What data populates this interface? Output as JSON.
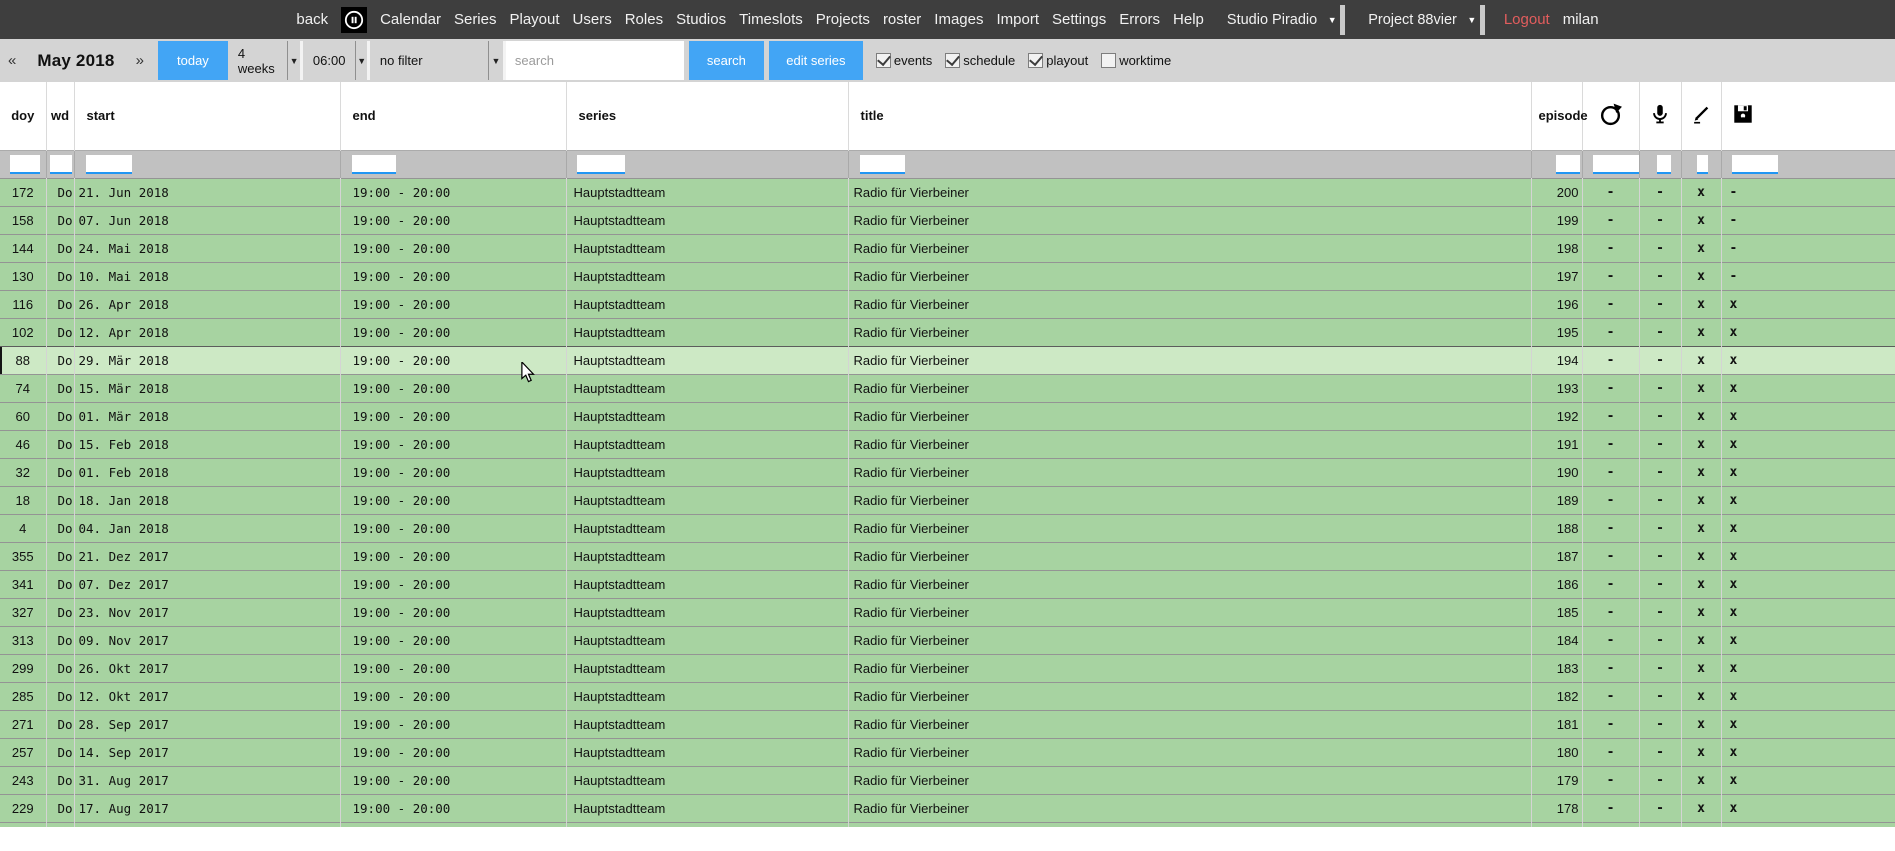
{
  "nav": {
    "back": "back",
    "logo_icon": "pause-circle-logo",
    "items": [
      "Calendar",
      "Series",
      "Playout",
      "Users",
      "Roles",
      "Studios",
      "Timeslots",
      "Projects",
      "roster",
      "Images",
      "Import",
      "Settings",
      "Errors",
      "Help"
    ],
    "studio_select": "Studio Piradio",
    "project_select": "Project 88vier",
    "logout": "Logout",
    "username": "milan"
  },
  "toolbar": {
    "prev": "«",
    "month": "May 2018",
    "next": "»",
    "today_button": "today",
    "range_select": "4 weeks",
    "time_select": "06:00",
    "filter_select": "no filter",
    "search_placeholder": "search",
    "search_button": "search",
    "edit_series_button": "edit series",
    "checkboxes": [
      {
        "label": "events",
        "checked": true
      },
      {
        "label": "schedule",
        "checked": true
      },
      {
        "label": "playout",
        "checked": true
      },
      {
        "label": "worktime",
        "checked": false
      }
    ]
  },
  "table": {
    "headers": {
      "doy": "doy",
      "wd": "wd",
      "start": "start",
      "end": "end",
      "series": "series",
      "title": "title",
      "episode": "episode"
    },
    "icon_columns": [
      "rerun-icon",
      "microphone-icon",
      "pencil-icon",
      "save-icon"
    ],
    "rows": [
      {
        "doy": "172",
        "wd": "Do,",
        "start": "21. Jun 2018",
        "end": "19:00 - 20:00",
        "series": "Hauptstadtteam",
        "title": "Radio für Vierbeiner",
        "episode": "200",
        "rerun": "-",
        "mic": "-",
        "edit": "x",
        "save": "-",
        "highlighted": false
      },
      {
        "doy": "158",
        "wd": "Do,",
        "start": "07. Jun 2018",
        "end": "19:00 - 20:00",
        "series": "Hauptstadtteam",
        "title": "Radio für Vierbeiner",
        "episode": "199",
        "rerun": "-",
        "mic": "-",
        "edit": "x",
        "save": "-",
        "highlighted": false
      },
      {
        "doy": "144",
        "wd": "Do,",
        "start": "24. Mai 2018",
        "end": "19:00 - 20:00",
        "series": "Hauptstadtteam",
        "title": "Radio für Vierbeiner",
        "episode": "198",
        "rerun": "-",
        "mic": "-",
        "edit": "x",
        "save": "-",
        "highlighted": false
      },
      {
        "doy": "130",
        "wd": "Do,",
        "start": "10. Mai 2018",
        "end": "19:00 - 20:00",
        "series": "Hauptstadtteam",
        "title": "Radio für Vierbeiner",
        "episode": "197",
        "rerun": "-",
        "mic": "-",
        "edit": "x",
        "save": "-",
        "highlighted": false
      },
      {
        "doy": "116",
        "wd": "Do,",
        "start": "26. Apr 2018",
        "end": "19:00 - 20:00",
        "series": "Hauptstadtteam",
        "title": "Radio für Vierbeiner",
        "episode": "196",
        "rerun": "-",
        "mic": "-",
        "edit": "x",
        "save": "x",
        "highlighted": false
      },
      {
        "doy": "102",
        "wd": "Do,",
        "start": "12. Apr 2018",
        "end": "19:00 - 20:00",
        "series": "Hauptstadtteam",
        "title": "Radio für Vierbeiner",
        "episode": "195",
        "rerun": "-",
        "mic": "-",
        "edit": "x",
        "save": "x",
        "highlighted": false
      },
      {
        "doy": "88",
        "wd": "Do,",
        "start": "29. Mär 2018",
        "end": "19:00 - 20:00",
        "series": "Hauptstadtteam",
        "title": "Radio für Vierbeiner",
        "episode": "194",
        "rerun": "-",
        "mic": "-",
        "edit": "x",
        "save": "x",
        "highlighted": true
      },
      {
        "doy": "74",
        "wd": "Do,",
        "start": "15. Mär 2018",
        "end": "19:00 - 20:00",
        "series": "Hauptstadtteam",
        "title": "Radio für Vierbeiner",
        "episode": "193",
        "rerun": "-",
        "mic": "-",
        "edit": "x",
        "save": "x",
        "highlighted": false
      },
      {
        "doy": "60",
        "wd": "Do,",
        "start": "01. Mär 2018",
        "end": "19:00 - 20:00",
        "series": "Hauptstadtteam",
        "title": "Radio für Vierbeiner",
        "episode": "192",
        "rerun": "-",
        "mic": "-",
        "edit": "x",
        "save": "x",
        "highlighted": false
      },
      {
        "doy": "46",
        "wd": "Do,",
        "start": "15. Feb 2018",
        "end": "19:00 - 20:00",
        "series": "Hauptstadtteam",
        "title": "Radio für Vierbeiner",
        "episode": "191",
        "rerun": "-",
        "mic": "-",
        "edit": "x",
        "save": "x",
        "highlighted": false
      },
      {
        "doy": "32",
        "wd": "Do,",
        "start": "01. Feb 2018",
        "end": "19:00 - 20:00",
        "series": "Hauptstadtteam",
        "title": "Radio für Vierbeiner",
        "episode": "190",
        "rerun": "-",
        "mic": "-",
        "edit": "x",
        "save": "x",
        "highlighted": false
      },
      {
        "doy": "18",
        "wd": "Do,",
        "start": "18. Jan 2018",
        "end": "19:00 - 20:00",
        "series": "Hauptstadtteam",
        "title": "Radio für Vierbeiner",
        "episode": "189",
        "rerun": "-",
        "mic": "-",
        "edit": "x",
        "save": "x",
        "highlighted": false
      },
      {
        "doy": "4",
        "wd": "Do,",
        "start": "04. Jan 2018",
        "end": "19:00 - 20:00",
        "series": "Hauptstadtteam",
        "title": "Radio für Vierbeiner",
        "episode": "188",
        "rerun": "-",
        "mic": "-",
        "edit": "x",
        "save": "x",
        "highlighted": false
      },
      {
        "doy": "355",
        "wd": "Do,",
        "start": "21. Dez 2017",
        "end": "19:00 - 20:00",
        "series": "Hauptstadtteam",
        "title": "Radio für Vierbeiner",
        "episode": "187",
        "rerun": "-",
        "mic": "-",
        "edit": "x",
        "save": "x",
        "highlighted": false
      },
      {
        "doy": "341",
        "wd": "Do,",
        "start": "07. Dez 2017",
        "end": "19:00 - 20:00",
        "series": "Hauptstadtteam",
        "title": "Radio für Vierbeiner",
        "episode": "186",
        "rerun": "-",
        "mic": "-",
        "edit": "x",
        "save": "x",
        "highlighted": false
      },
      {
        "doy": "327",
        "wd": "Do,",
        "start": "23. Nov 2017",
        "end": "19:00 - 20:00",
        "series": "Hauptstadtteam",
        "title": "Radio für Vierbeiner",
        "episode": "185",
        "rerun": "-",
        "mic": "-",
        "edit": "x",
        "save": "x",
        "highlighted": false
      },
      {
        "doy": "313",
        "wd": "Do,",
        "start": "09. Nov 2017",
        "end": "19:00 - 20:00",
        "series": "Hauptstadtteam",
        "title": "Radio für Vierbeiner",
        "episode": "184",
        "rerun": "-",
        "mic": "-",
        "edit": "x",
        "save": "x",
        "highlighted": false
      },
      {
        "doy": "299",
        "wd": "Do,",
        "start": "26. Okt 2017",
        "end": "19:00 - 20:00",
        "series": "Hauptstadtteam",
        "title": "Radio für Vierbeiner",
        "episode": "183",
        "rerun": "-",
        "mic": "-",
        "edit": "x",
        "save": "x",
        "highlighted": false
      },
      {
        "doy": "285",
        "wd": "Do,",
        "start": "12. Okt 2017",
        "end": "19:00 - 20:00",
        "series": "Hauptstadtteam",
        "title": "Radio für Vierbeiner",
        "episode": "182",
        "rerun": "-",
        "mic": "-",
        "edit": "x",
        "save": "x",
        "highlighted": false
      },
      {
        "doy": "271",
        "wd": "Do,",
        "start": "28. Sep 2017",
        "end": "19:00 - 20:00",
        "series": "Hauptstadtteam",
        "title": "Radio für Vierbeiner",
        "episode": "181",
        "rerun": "-",
        "mic": "-",
        "edit": "x",
        "save": "x",
        "highlighted": false
      },
      {
        "doy": "257",
        "wd": "Do,",
        "start": "14. Sep 2017",
        "end": "19:00 - 20:00",
        "series": "Hauptstadtteam",
        "title": "Radio für Vierbeiner",
        "episode": "180",
        "rerun": "-",
        "mic": "-",
        "edit": "x",
        "save": "x",
        "highlighted": false
      },
      {
        "doy": "243",
        "wd": "Do,",
        "start": "31. Aug 2017",
        "end": "19:00 - 20:00",
        "series": "Hauptstadtteam",
        "title": "Radio für Vierbeiner",
        "episode": "179",
        "rerun": "-",
        "mic": "-",
        "edit": "x",
        "save": "x",
        "highlighted": false
      },
      {
        "doy": "229",
        "wd": "Do,",
        "start": "17. Aug 2017",
        "end": "19:00 - 20:00",
        "series": "Hauptstadtteam",
        "title": "Radio für Vierbeiner",
        "episode": "178",
        "rerun": "-",
        "mic": "-",
        "edit": "x",
        "save": "x",
        "highlighted": false
      }
    ]
  },
  "colors": {
    "nav_bg": "#3e3e3e",
    "toolbar_bg": "#d4d4d4",
    "accent": "#42a5f5",
    "accent2": "#2196f3",
    "filter_bg": "#c1c1c1",
    "row_green": "#a7d3a1",
    "row_highlight": "#cde9c5",
    "logout_red": "#e25d5d"
  }
}
